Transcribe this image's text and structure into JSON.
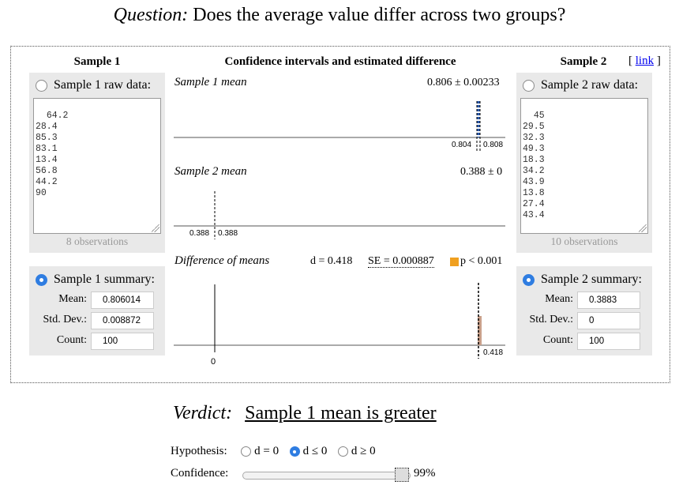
{
  "question": {
    "label": "Question:",
    "text": "Does the average value differ across two groups?"
  },
  "headers": {
    "sample1": "Sample 1",
    "middle": "Confidence intervals and estimated difference",
    "sample2": "Sample 2",
    "link": "link"
  },
  "sample1": {
    "raw_label": "Sample 1 raw data:",
    "raw_selected": false,
    "raw_values": "64.2\n28.4\n85.3\n83.1\n13.4\n56.8\n44.2\n90",
    "observations": "8 observations",
    "summary_label": "Sample 1 summary:",
    "summary_selected": true,
    "mean_label": "Mean:",
    "mean_value": "0.806014",
    "sd_label": "Std. Dev.:",
    "sd_value": "0.008872",
    "count_label": "Count:",
    "count_value": "100"
  },
  "sample2": {
    "raw_label": "Sample 2 raw data:",
    "raw_selected": false,
    "raw_values": "45\n29.5\n32.3\n49.3\n18.3\n34.2\n43.9\n13.8\n27.4\n43.4",
    "observations": "10 observations",
    "summary_label": "Sample 2 summary:",
    "summary_selected": true,
    "mean_label": "Mean:",
    "mean_value": "0.3883",
    "sd_label": "Std. Dev.:",
    "sd_value": "0",
    "count_label": "Count:",
    "count_value": "100"
  },
  "plots": {
    "mean1": {
      "label": "Sample 1 mean",
      "value": "0.806 ± 0.00233",
      "ci_low": "0.804",
      "ci_high": "0.808",
      "color": "#2f5fb3"
    },
    "mean2": {
      "label": "Sample 2 mean",
      "value": "0.388 ± 0",
      "ci_low": "0.388",
      "ci_high": "0.388"
    },
    "diff": {
      "label": "Difference of means",
      "d_text": "d = 0.418",
      "se_text": "SE = 0.000887",
      "p_text": "p < 0.001",
      "p_color": "#f0a020",
      "zero_label": "0",
      "diff_label": "0.418",
      "ci_color": "#c9a08a"
    }
  },
  "verdict": {
    "label": "Verdict:",
    "text": "Sample 1 mean is greater"
  },
  "hypothesis": {
    "label": "Hypothesis:",
    "options": [
      "d = 0",
      "d ≤ 0",
      "d ≥ 0"
    ],
    "selected_index": 1
  },
  "confidence": {
    "label": "Confidence:",
    "value_text": "99%",
    "level": 0.99
  }
}
